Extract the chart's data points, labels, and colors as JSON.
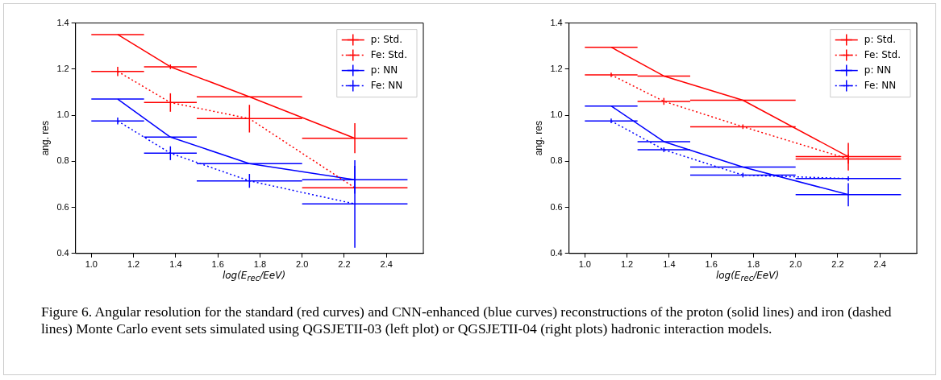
{
  "chart_data": [
    {
      "type": "line",
      "xlabel": "log(E$_{rec}$/EeV)",
      "ylabel": "ang. res",
      "x": [
        1.125,
        1.375,
        1.75,
        2.25
      ],
      "xlim": [
        0.925,
        2.575
      ],
      "ylim": [
        0.4,
        1.4
      ],
      "xticks": [
        {
          "value": 1,
          "label": "1.0"
        },
        {
          "value": 1.2,
          "label": "1.2"
        },
        {
          "value": 1.4,
          "label": "1.4"
        },
        {
          "value": 1.6,
          "label": "1.6"
        },
        {
          "value": 1.8,
          "label": "1.8"
        },
        {
          "value": 2,
          "label": "2.0"
        },
        {
          "value": 2.2,
          "label": "2.2"
        },
        {
          "value": 2.4,
          "label": "2.4"
        }
      ],
      "yticks": [
        {
          "value": 0.4,
          "label": "0.4"
        },
        {
          "value": 0.6,
          "label": "0.6"
        },
        {
          "value": 0.8,
          "label": "0.8"
        },
        {
          "value": 1,
          "label": "1.0"
        },
        {
          "value": 1.2,
          "label": "1.2"
        },
        {
          "value": 1.4,
          "label": "1.4"
        }
      ],
      "series": [
        {
          "name": "p: Std.",
          "color": "#ff0000",
          "line_style": "solid",
          "values": [
            1.35,
            1.21,
            1.08,
            0.9
          ],
          "errors": [
            null,
            0.01,
            null,
            0.065
          ],
          "xerrors": [
            0.125,
            0.125,
            0.25,
            0.25
          ]
        },
        {
          "name": "Fe: Std.",
          "color": "#ff0000",
          "line_style": "dotted",
          "values": [
            1.19,
            1.055,
            0.985,
            0.685
          ],
          "errors": [
            0.02,
            0.04,
            0.06,
            null
          ],
          "xerrors": [
            0.125,
            0.125,
            0.25,
            0.25
          ]
        },
        {
          "name": "p: NN",
          "color": "#0000ff",
          "line_style": "solid",
          "values": [
            1.07,
            0.905,
            0.79,
            0.72
          ],
          "errors": [
            null,
            null,
            null,
            0.06
          ],
          "xerrors": [
            0.125,
            0.125,
            0.25,
            0.25
          ]
        },
        {
          "name": "Fe: NN",
          "color": "#0000ff",
          "line_style": "dotted",
          "values": [
            0.975,
            0.835,
            0.715,
            0.615
          ],
          "errors": [
            0.015,
            0.03,
            0.03,
            0.19
          ],
          "xerrors": [
            0.125,
            0.125,
            0.25,
            0.25
          ]
        }
      ],
      "marker": "none",
      "grid": false,
      "legend": "top right",
      "annotations": [
        "Figure 6. Angular resolution for the standard (red curves) and CNN-enhanced (blue curves) reconstructions of the proton (solid lines) and iron (dashed lines) Monte Carlo event sets simulated using QGSJETII-03 (left plot) or QGSJETII-04 (right plots) hadronic interaction models."
      ]
    },
    {
      "type": "line",
      "xlabel": "log(E$_{rec}$/EeV)",
      "ylabel": "ang. res",
      "x": [
        1.125,
        1.375,
        1.75,
        2.25
      ],
      "xlim": [
        0.925,
        2.575
      ],
      "ylim": [
        0.4,
        1.4
      ],
      "xticks": [
        {
          "value": 1,
          "label": "1.0"
        },
        {
          "value": 1.2,
          "label": "1.2"
        },
        {
          "value": 1.4,
          "label": "1.4"
        },
        {
          "value": 1.6,
          "label": "1.6"
        },
        {
          "value": 1.8,
          "label": "1.8"
        },
        {
          "value": 2,
          "label": "2.0"
        },
        {
          "value": 2.2,
          "label": "2.2"
        },
        {
          "value": 2.4,
          "label": "2.4"
        }
      ],
      "yticks": [
        {
          "value": 0.4,
          "label": "0.4"
        },
        {
          "value": 0.6,
          "label": "0.6"
        },
        {
          "value": 0.8,
          "label": "0.8"
        },
        {
          "value": 1,
          "label": "1.0"
        },
        {
          "value": 1.2,
          "label": "1.2"
        },
        {
          "value": 1.4,
          "label": "1.4"
        }
      ],
      "series": [
        {
          "name": "p: Std.",
          "color": "#ff0000",
          "line_style": "solid",
          "values": [
            1.295,
            1.17,
            1.065,
            0.82
          ],
          "errors": [
            null,
            null,
            null,
            0.06
          ],
          "xerrors": [
            0.125,
            0.125,
            0.25,
            0.25
          ]
        },
        {
          "name": "Fe: Std.",
          "color": "#ff0000",
          "line_style": "dotted",
          "values": [
            1.175,
            1.06,
            0.95,
            0.81
          ],
          "errors": [
            0.01,
            0.015,
            0.01,
            0.02
          ],
          "xerrors": [
            0.125,
            0.125,
            0.25,
            0.25
          ]
        },
        {
          "name": "p: NN",
          "color": "#0000ff",
          "line_style": "solid",
          "values": [
            1.04,
            0.885,
            0.775,
            0.655
          ],
          "errors": [
            null,
            null,
            null,
            0.05
          ],
          "xerrors": [
            0.125,
            0.125,
            0.25,
            0.25
          ]
        },
        {
          "name": "Fe: NN",
          "color": "#0000ff",
          "line_style": "dotted",
          "values": [
            0.975,
            0.85,
            0.74,
            0.725
          ],
          "errors": [
            0.01,
            0.01,
            0.01,
            0.01
          ],
          "xerrors": [
            0.125,
            0.125,
            0.25,
            0.25
          ]
        }
      ],
      "marker": "none",
      "grid": false,
      "legend": "top right"
    }
  ]
}
